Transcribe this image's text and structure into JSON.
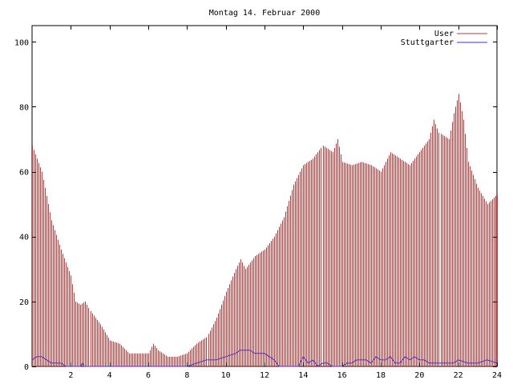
{
  "chart_data": {
    "type": "bar",
    "title": "Montag 14. Februar 2000",
    "xlabel": "",
    "ylabel": "",
    "xlim": [
      0,
      24
    ],
    "ylim": [
      0,
      105
    ],
    "xticks": [
      "2",
      "4",
      "6",
      "8",
      "10",
      "12",
      "14",
      "16",
      "18",
      "20",
      "22",
      "24"
    ],
    "yticks": [
      "0",
      "20",
      "40",
      "60",
      "80",
      "100"
    ],
    "grid": false,
    "legend_position": "top-right",
    "series": [
      {
        "name": "User",
        "style": "impulses",
        "color": "#cc3333",
        "points": [
          [
            0.0,
            68
          ],
          [
            0.5,
            60
          ],
          [
            1.0,
            45
          ],
          [
            1.5,
            36
          ],
          [
            2.0,
            28
          ],
          [
            2.25,
            20
          ],
          [
            2.5,
            19
          ],
          [
            2.75,
            20
          ],
          [
            3.0,
            17
          ],
          [
            3.5,
            13
          ],
          [
            4.0,
            8
          ],
          [
            4.5,
            7
          ],
          [
            5.0,
            4
          ],
          [
            5.5,
            4
          ],
          [
            6.0,
            4
          ],
          [
            6.25,
            7
          ],
          [
            6.5,
            5
          ],
          [
            7.0,
            3
          ],
          [
            7.5,
            3
          ],
          [
            8.0,
            4
          ],
          [
            8.5,
            7
          ],
          [
            9.0,
            9
          ],
          [
            9.5,
            15
          ],
          [
            10.0,
            23
          ],
          [
            10.5,
            30
          ],
          [
            10.75,
            33
          ],
          [
            11.0,
            30
          ],
          [
            11.5,
            34
          ],
          [
            12.0,
            36
          ],
          [
            12.5,
            40
          ],
          [
            13.0,
            46
          ],
          [
            13.5,
            56
          ],
          [
            14.0,
            62
          ],
          [
            14.5,
            64
          ],
          [
            15.0,
            68
          ],
          [
            15.5,
            66
          ],
          [
            15.75,
            70
          ],
          [
            16.0,
            63
          ],
          [
            16.5,
            62
          ],
          [
            17.0,
            63
          ],
          [
            17.5,
            62
          ],
          [
            18.0,
            60
          ],
          [
            18.5,
            66
          ],
          [
            19.0,
            64
          ],
          [
            19.5,
            62
          ],
          [
            20.0,
            66
          ],
          [
            20.5,
            70
          ],
          [
            20.75,
            76
          ],
          [
            21.0,
            72
          ],
          [
            21.5,
            70
          ],
          [
            21.75,
            78
          ],
          [
            22.0,
            84
          ],
          [
            22.25,
            76
          ],
          [
            22.5,
            63
          ],
          [
            23.0,
            55
          ],
          [
            23.5,
            50
          ],
          [
            24.0,
            53
          ]
        ]
      },
      {
        "name": "Stuttgarter",
        "style": "lines",
        "color": "#3333cc",
        "points": [
          [
            0.0,
            2
          ],
          [
            0.25,
            3
          ],
          [
            0.5,
            3
          ],
          [
            0.75,
            2
          ],
          [
            1.0,
            1
          ],
          [
            1.5,
            1
          ],
          [
            1.75,
            0
          ],
          [
            2.5,
            0
          ],
          [
            2.6,
            1
          ],
          [
            2.7,
            0
          ],
          [
            8.0,
            0
          ],
          [
            8.5,
            1
          ],
          [
            9.0,
            2
          ],
          [
            9.5,
            2
          ],
          [
            10.0,
            3
          ],
          [
            10.5,
            4
          ],
          [
            10.75,
            5
          ],
          [
            11.25,
            5
          ],
          [
            11.5,
            4
          ],
          [
            12.0,
            4
          ],
          [
            12.5,
            2
          ],
          [
            12.75,
            0
          ],
          [
            13.75,
            0
          ],
          [
            14.0,
            3
          ],
          [
            14.25,
            1
          ],
          [
            14.5,
            2
          ],
          [
            14.75,
            0
          ],
          [
            15.0,
            1
          ],
          [
            15.25,
            1
          ],
          [
            15.5,
            0
          ],
          [
            16.0,
            0
          ],
          [
            16.25,
            1
          ],
          [
            16.5,
            1
          ],
          [
            16.75,
            2
          ],
          [
            17.25,
            2
          ],
          [
            17.5,
            1
          ],
          [
            17.75,
            3
          ],
          [
            18.0,
            2
          ],
          [
            18.25,
            2
          ],
          [
            18.5,
            3
          ],
          [
            18.75,
            1
          ],
          [
            19.0,
            1
          ],
          [
            19.25,
            3
          ],
          [
            19.5,
            2
          ],
          [
            19.75,
            3
          ],
          [
            20.0,
            2
          ],
          [
            20.25,
            2
          ],
          [
            20.5,
            1
          ],
          [
            21.5,
            1
          ],
          [
            21.75,
            1
          ],
          [
            22.0,
            2
          ],
          [
            22.5,
            1
          ],
          [
            23.0,
            1
          ],
          [
            23.5,
            2
          ],
          [
            24.0,
            1
          ]
        ]
      }
    ]
  }
}
